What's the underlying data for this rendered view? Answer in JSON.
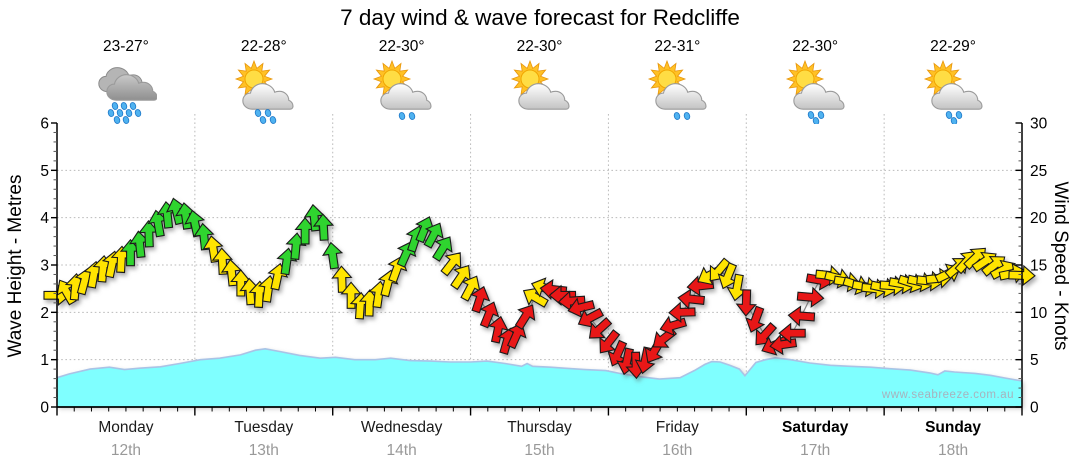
{
  "title": "7 day wind & wave forecast for Redcliffe",
  "watermark": "www.seabreeze.com.au",
  "axes": {
    "left_label": "Wave Height - Metres",
    "right_label": "Wind Speed - Knots",
    "left_ticks": [
      0,
      1,
      2,
      3,
      4,
      5,
      6
    ],
    "right_ticks": [
      0,
      5,
      10,
      15,
      20,
      25,
      30
    ]
  },
  "days": [
    {
      "name": "Monday",
      "date": "12th",
      "temp": "23-27°",
      "weather": "rain",
      "icon": {
        "sun": false,
        "clouds": 2,
        "drops": 9
      },
      "bold": false
    },
    {
      "name": "Tuesday",
      "date": "13th",
      "temp": "22-28°",
      "weather": "sun-showers",
      "icon": {
        "sun": true,
        "clouds": 1,
        "drops": 4
      },
      "bold": false
    },
    {
      "name": "Wednesday",
      "date": "14th",
      "temp": "22-30°",
      "weather": "sun-light-shower",
      "icon": {
        "sun": true,
        "clouds": 1,
        "drops": 2
      },
      "bold": false
    },
    {
      "name": "Thursday",
      "date": "15th",
      "temp": "22-30°",
      "weather": "partly-cloudy",
      "icon": {
        "sun": true,
        "clouds": 1,
        "drops": 0
      },
      "bold": false
    },
    {
      "name": "Friday",
      "date": "16th",
      "temp": "22-31°",
      "weather": "sun-light-shower",
      "icon": {
        "sun": true,
        "clouds": 1,
        "drops": 2
      },
      "bold": false
    },
    {
      "name": "Saturday",
      "date": "17th",
      "temp": "22-30°",
      "weather": "sun-showers",
      "icon": {
        "sun": true,
        "clouds": 1,
        "drops": 3
      },
      "bold": true
    },
    {
      "name": "Sunday",
      "date": "18th",
      "temp": "22-29°",
      "weather": "sun-showers",
      "icon": {
        "sun": true,
        "clouds": 1,
        "drops": 3
      },
      "bold": true
    }
  ],
  "chart_data": {
    "type": "combo-wind-arrows-and-wave-area",
    "x_axis": {
      "unit": "days",
      "range": [
        0,
        7
      ],
      "major_tick_every_days": 1,
      "minor_tick_every_days": 0.125,
      "grid": "dotted-vertical-at-day-boundaries"
    },
    "wave": {
      "name": "Wave Height",
      "units": "metres",
      "axis": "left",
      "ylim": [
        0,
        6
      ],
      "grid": "dotted-horizontal-at-integers",
      "points": [
        [
          0.0,
          0.62
        ],
        [
          0.09,
          0.7
        ],
        [
          0.24,
          0.8
        ],
        [
          0.38,
          0.84
        ],
        [
          0.49,
          0.79
        ],
        [
          0.6,
          0.82
        ],
        [
          0.75,
          0.85
        ],
        [
          0.89,
          0.92
        ],
        [
          1.04,
          1.0
        ],
        [
          1.18,
          1.03
        ],
        [
          1.33,
          1.1
        ],
        [
          1.44,
          1.2
        ],
        [
          1.51,
          1.23
        ],
        [
          1.62,
          1.17
        ],
        [
          1.76,
          1.09
        ],
        [
          1.91,
          1.03
        ],
        [
          2.02,
          1.05
        ],
        [
          2.16,
          1.0
        ],
        [
          2.31,
          1.0
        ],
        [
          2.42,
          1.03
        ],
        [
          2.56,
          0.98
        ],
        [
          2.71,
          0.97
        ],
        [
          2.85,
          0.95
        ],
        [
          3.0,
          0.95
        ],
        [
          3.12,
          0.97
        ],
        [
          3.25,
          0.92
        ],
        [
          3.37,
          0.86
        ],
        [
          3.41,
          0.92
        ],
        [
          3.45,
          0.86
        ],
        [
          3.58,
          0.84
        ],
        [
          3.68,
          0.82
        ],
        [
          3.83,
          0.79
        ],
        [
          3.98,
          0.77
        ],
        [
          4.08,
          0.71
        ],
        [
          4.23,
          0.64
        ],
        [
          4.37,
          0.59
        ],
        [
          4.52,
          0.62
        ],
        [
          4.63,
          0.78
        ],
        [
          4.7,
          0.9
        ],
        [
          4.75,
          0.96
        ],
        [
          4.81,
          0.95
        ],
        [
          4.88,
          0.88
        ],
        [
          4.95,
          0.8
        ],
        [
          4.99,
          0.66
        ],
        [
          5.03,
          0.8
        ],
        [
          5.07,
          0.94
        ],
        [
          5.14,
          1.0
        ],
        [
          5.21,
          1.04
        ],
        [
          5.32,
          1.0
        ],
        [
          5.46,
          0.93
        ],
        [
          5.61,
          0.88
        ],
        [
          5.75,
          0.86
        ],
        [
          5.9,
          0.84
        ],
        [
          6.04,
          0.81
        ],
        [
          6.19,
          0.78
        ],
        [
          6.33,
          0.72
        ],
        [
          6.39,
          0.68
        ],
        [
          6.44,
          0.76
        ],
        [
          6.51,
          0.74
        ],
        [
          6.66,
          0.71
        ],
        [
          6.77,
          0.67
        ],
        [
          6.88,
          0.61
        ],
        [
          7.0,
          0.55
        ]
      ]
    },
    "wind": {
      "name": "Wind Speed",
      "units": "knots",
      "axis": "right",
      "ylim": [
        0,
        30
      ],
      "arrow_spacing_days": 0.06667,
      "dir_convention": "degrees clockwise from up; arrow points where wind blows toward",
      "knots": [
        11.8,
        12.2,
        12.7,
        13.3,
        14,
        14.6,
        15.1,
        15.6,
        16.3,
        17.2,
        18.3,
        19.4,
        20.3,
        20.7,
        20.2,
        19.4,
        18,
        16.7,
        15.4,
        14.2,
        13.1,
        12.2,
        11.9,
        12.5,
        13.8,
        15.4,
        17,
        18.6,
        20,
        19,
        16,
        13.5,
        11.8,
        10.7,
        11,
        11.9,
        13.1,
        14.6,
        16.2,
        17.8,
        18.8,
        18.2,
        16.8,
        15.2,
        13.8,
        12.6,
        11.4,
        9.8,
        8.2,
        7,
        7.6,
        9.6,
        11.6,
        12.6,
        12.4,
        11.8,
        11.2,
        10.5,
        9.4,
        8.2,
        6.8,
        5.6,
        4.8,
        4.4,
        4.9,
        5.9,
        7.2,
        8.6,
        10,
        11.4,
        12.8,
        13.9,
        14.4,
        13.8,
        12.6,
        11,
        9.2,
        7.6,
        6.5,
        6.6,
        7.8,
        9.6,
        11.6,
        13.4,
        13.9,
        13.6,
        13.2,
        12.9,
        12.7,
        12.5,
        12.6,
        12.8,
        13,
        13.1,
        13.2,
        13.3,
        13.6,
        14.1,
        14.8,
        15.4,
        15.8,
        15.4,
        15,
        14.5,
        14.1,
        13.9
      ],
      "dir_deg": [
        90,
        -30,
        5,
        15,
        10,
        5,
        12,
        3,
        0,
        -6,
        -2,
        -10,
        -6,
        -14,
        -8,
        -12,
        -6,
        -9,
        -3,
        -6,
        0,
        -4,
        3,
        8,
        12,
        8,
        5,
        0,
        -6,
        -3,
        -8,
        -2,
        0,
        4,
        2,
        8,
        14,
        20,
        24,
        18,
        22,
        28,
        32,
        38,
        34,
        28,
        18,
        22,
        12,
        16,
        24,
        32,
        -60,
        -72,
        -84,
        -90,
        -94,
        -104,
        -118,
        -132,
        -142,
        -156,
        -168,
        178,
        -168,
        -150,
        -128,
        -106,
        -92,
        -84,
        -96,
        -118,
        -140,
        -158,
        -170,
        -178,
        -160,
        -138,
        -114,
        -98,
        -90,
        -86,
        95,
        100,
        96,
        104,
        99,
        108,
        100,
        96,
        102,
        94,
        100,
        108,
        103,
        96,
        84,
        64,
        50,
        42,
        46,
        56,
        52,
        62,
        78,
        92
      ],
      "color_codes": "yyyyyyyygggggggggyyyyyyyyggggg   gyyyyyyygggggyyyrrrrrryyrrrrrrrrrrrrrrrrryyyyrrrrrrrrryyyyyyyyyyyyyyyyyyyyyyyy"
    },
    "colors": {
      "arrow_yellow": "#FFE400",
      "arrow_green": "#2FD42F",
      "arrow_red": "#E81717",
      "arrow_outline": "#1a1a1a",
      "wave_fill": "#7FFFFF",
      "wave_edge": "#A9C3E6",
      "grid": "#BBBBBB",
      "connector_line": "#8a8a8a"
    }
  }
}
